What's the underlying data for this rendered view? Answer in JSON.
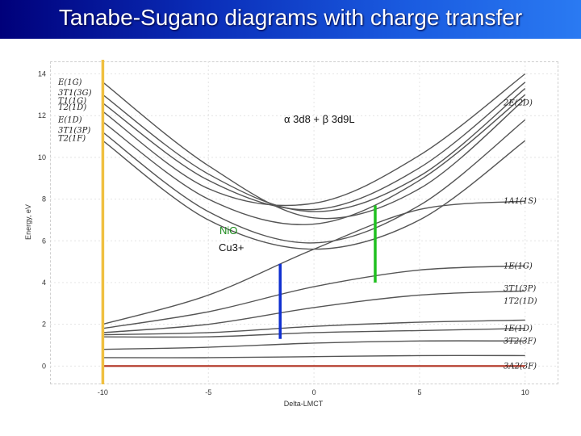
{
  "slide": {
    "title": "Tanabe-Sugano diagrams with charge transfer"
  },
  "chart_data": {
    "type": "line",
    "xlabel": "Delta-LMCT",
    "ylabel": "Energy, eV",
    "xlim": [
      -12.5,
      11.5
    ],
    "ylim": [
      -0.8,
      14.6
    ],
    "x_ticks": [
      -10,
      -5,
      0,
      5,
      10
    ],
    "y_ticks": [
      0,
      2,
      4,
      6,
      8,
      10,
      12,
      14
    ],
    "left_labels": [
      {
        "text": "E(1G)",
        "y": 13.6
      },
      {
        "text": "3T1(3G)",
        "y": 13.1
      },
      {
        "text": "T1(1G)",
        "y": 12.7
      },
      {
        "text": "T2(1D)",
        "y": 12.4
      },
      {
        "text": "E(1D)",
        "y": 11.8
      },
      {
        "text": "3T1(3P)",
        "y": 11.3
      },
      {
        "text": "T2(1F)",
        "y": 10.9
      }
    ],
    "right_labels": [
      {
        "text": "2E(2D)",
        "y": 12.6
      },
      {
        "text": "1A1(1S)",
        "y": 7.9
      },
      {
        "text": "1E(1G)",
        "y": 4.8
      },
      {
        "text": "3T1(3P)",
        "y": 3.7
      },
      {
        "text": "1T2(1D)",
        "y": 3.1
      },
      {
        "text": "1E(1D)",
        "y": 1.8
      },
      {
        "text": "3T2(3F)",
        "y": 1.2
      },
      {
        "text": "3A2(3F)",
        "y": 0.0
      }
    ],
    "annotations": {
      "formula": "α 3d8 + β 3d9L",
      "nio": "NiO",
      "cu": "Cu3+"
    },
    "series": [
      {
        "x": [
          -10,
          -5,
          0,
          5,
          10
        ],
        "values": [
          1.5,
          1.6,
          1.9,
          2.1,
          2.2
        ]
      },
      {
        "x": [
          -10,
          -5,
          0,
          5,
          10
        ],
        "values": [
          1.6,
          2.0,
          2.8,
          3.4,
          3.6
        ]
      },
      {
        "x": [
          -10,
          -5,
          0,
          5,
          10
        ],
        "values": [
          1.8,
          2.6,
          3.8,
          4.6,
          4.8
        ]
      },
      {
        "x": [
          -10,
          -5,
          0,
          5,
          10
        ],
        "values": [
          1.4,
          1.4,
          1.6,
          1.7,
          1.8
        ]
      },
      {
        "x": [
          -10,
          -5,
          0,
          5,
          10
        ],
        "values": [
          0.8,
          0.9,
          1.1,
          1.2,
          1.2
        ]
      },
      {
        "x": [
          -10,
          -5,
          0,
          5,
          10
        ],
        "values": [
          0.4,
          0.4,
          0.45,
          0.5,
          0.5
        ]
      },
      {
        "x": [
          -10,
          -5,
          0,
          5,
          10
        ],
        "values": [
          2.0,
          3.4,
          5.6,
          7.5,
          7.9
        ]
      },
      {
        "x": [
          -10,
          -5,
          0,
          5,
          10
        ],
        "values": [
          13.6,
          9.6,
          7.1,
          8.5,
          12.8
        ]
      },
      {
        "x": [
          -10,
          -5,
          0,
          5,
          10
        ],
        "values": [
          13.0,
          9.2,
          7.4,
          9.1,
          13.3
        ]
      },
      {
        "x": [
          -10,
          -5,
          0,
          5,
          10
        ],
        "values": [
          12.6,
          8.9,
          7.5,
          9.5,
          13.6
        ]
      },
      {
        "x": [
          -10,
          -5,
          0,
          5,
          10
        ],
        "values": [
          12.2,
          8.5,
          7.8,
          10.1,
          14.0
        ]
      },
      {
        "x": [
          -10,
          -5,
          0,
          5,
          10
        ],
        "values": [
          11.7,
          8.0,
          6.8,
          8.9,
          13.0
        ]
      },
      {
        "x": [
          -10,
          -5,
          0,
          5,
          10
        ],
        "values": [
          11.2,
          7.4,
          5.9,
          7.7,
          11.8
        ]
      },
      {
        "x": [
          -10,
          -5,
          0,
          5,
          10
        ],
        "values": [
          10.8,
          7.0,
          5.6,
          7.0,
          10.8
        ]
      },
      {
        "x": [
          -10,
          -5,
          0,
          5,
          10
        ],
        "values": [
          0.0,
          0.0,
          0.0,
          0.0,
          0.0
        ]
      }
    ],
    "colors": {
      "levels": "#555555",
      "ground": "#b03020",
      "orange_line": "#f0c040",
      "blue_marker": "#1030d0",
      "green_marker": "#20c020"
    },
    "markers": {
      "orange_x": -10,
      "blue": {
        "x": -1.6,
        "y0": 1.3,
        "y1": 4.9
      },
      "green": {
        "x": 2.9,
        "y0": 4.0,
        "y1": 7.7
      }
    }
  }
}
